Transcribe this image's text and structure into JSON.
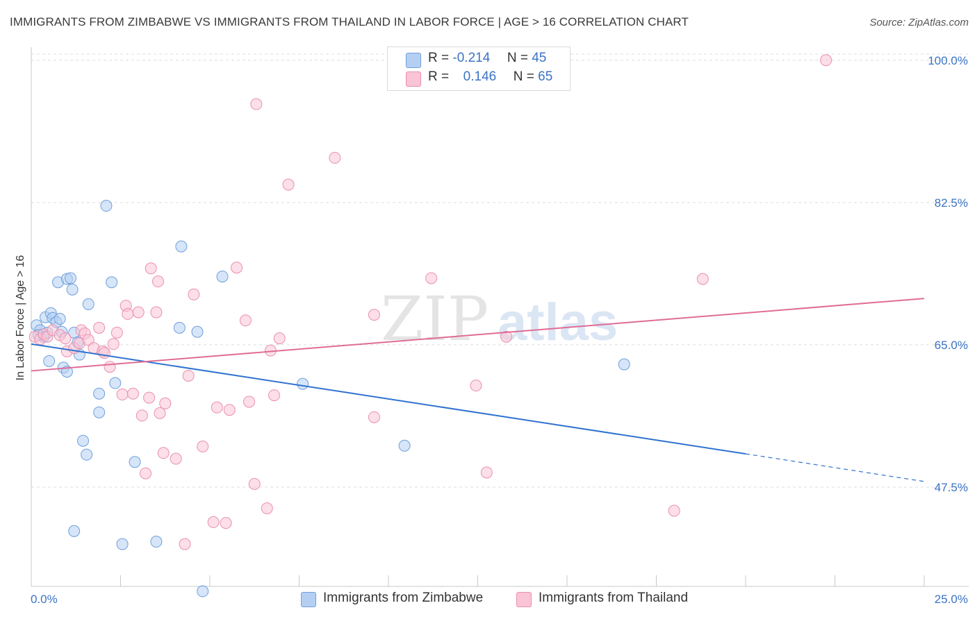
{
  "header": {
    "title": "IMMIGRANTS FROM ZIMBABWE VS IMMIGRANTS FROM THAILAND IN LABOR FORCE | AGE > 16 CORRELATION CHART",
    "source": "Source: ZipAtlas.com"
  },
  "watermark": {
    "zip": "ZIP",
    "atlas": "atlas"
  },
  "legend": {
    "r_label": "R =",
    "n_label": "N =",
    "series": [
      {
        "name": "Immigrants from Zimbabwe",
        "r": "-0.214",
        "n": "45"
      },
      {
        "name": "Immigrants from Thailand",
        "r": "0.146",
        "n": "65"
      }
    ]
  },
  "colors": {
    "zimbabwe_fill": "#b5cff2",
    "zimbabwe_stroke": "#6f9fdc",
    "zimbabwe_line": "#2f72d0",
    "thailand_fill": "#f9c4d5",
    "thailand_stroke": "#ea8fad",
    "thailand_line": "#e06c96",
    "tick_text": "#3b73c4",
    "grid": "#dcdcdc"
  },
  "chart_data": {
    "type": "scatter",
    "title": "IMMIGRANTS FROM ZIMBABWE VS IMMIGRANTS FROM THAILAND IN LABOR FORCE | AGE > 16 CORRELATION CHART",
    "xlabel": "",
    "ylabel": "In Labor Force | Age > 16",
    "xlim": [
      0,
      25
    ],
    "ylim": [
      35.3,
      101.6
    ],
    "x_tick_labels": [
      "0.0%",
      "25.0%"
    ],
    "y_ticks": [
      {
        "value": 47.5,
        "label": "47.5%"
      },
      {
        "value": 65.0,
        "label": "65.0%"
      },
      {
        "value": 82.5,
        "label": "82.5%"
      },
      {
        "value": 100.0,
        "label": "100.0%"
      }
    ],
    "grid": true,
    "series": [
      {
        "name": "Immigrants from Zimbabwe",
        "color": "#b5cff2",
        "trend": {
          "x": [
            0,
            20
          ],
          "y": [
            65.1,
            51.6
          ],
          "dashed_x": [
            20,
            25
          ],
          "dashed_y": [
            51.6,
            48.2
          ]
        },
        "points": [
          {
            "x": 0.15,
            "y": 67.4
          },
          {
            "x": 0.25,
            "y": 66.8
          },
          {
            "x": 0.35,
            "y": 66.0
          },
          {
            "x": 0.2,
            "y": 66.2
          },
          {
            "x": 0.45,
            "y": 66.5
          },
          {
            "x": 0.4,
            "y": 68.4
          },
          {
            "x": 0.55,
            "y": 68.9
          },
          {
            "x": 0.6,
            "y": 68.3
          },
          {
            "x": 0.7,
            "y": 67.8
          },
          {
            "x": 0.8,
            "y": 68.2
          },
          {
            "x": 0.85,
            "y": 66.6
          },
          {
            "x": 0.5,
            "y": 63.0
          },
          {
            "x": 0.9,
            "y": 62.2
          },
          {
            "x": 1.0,
            "y": 61.7
          },
          {
            "x": 0.75,
            "y": 72.7
          },
          {
            "x": 1.0,
            "y": 73.1
          },
          {
            "x": 1.1,
            "y": 73.2
          },
          {
            "x": 1.15,
            "y": 71.8
          },
          {
            "x": 1.2,
            "y": 66.5
          },
          {
            "x": 1.35,
            "y": 63.8
          },
          {
            "x": 1.3,
            "y": 65.3
          },
          {
            "x": 1.6,
            "y": 70.0
          },
          {
            "x": 2.1,
            "y": 82.1
          },
          {
            "x": 2.25,
            "y": 72.7
          },
          {
            "x": 2.35,
            "y": 60.3
          },
          {
            "x": 1.9,
            "y": 59.0
          },
          {
            "x": 1.9,
            "y": 56.7
          },
          {
            "x": 1.45,
            "y": 53.2
          },
          {
            "x": 1.55,
            "y": 51.5
          },
          {
            "x": 2.9,
            "y": 50.6
          },
          {
            "x": 4.2,
            "y": 77.1
          },
          {
            "x": 4.15,
            "y": 67.1
          },
          {
            "x": 4.65,
            "y": 66.6
          },
          {
            "x": 5.35,
            "y": 73.4
          },
          {
            "x": 7.6,
            "y": 60.2
          },
          {
            "x": 10.45,
            "y": 52.6
          },
          {
            "x": 16.6,
            "y": 62.6
          },
          {
            "x": 1.2,
            "y": 42.1
          },
          {
            "x": 2.55,
            "y": 40.5
          },
          {
            "x": 3.5,
            "y": 40.8
          },
          {
            "x": 4.8,
            "y": 34.7
          }
        ]
      },
      {
        "name": "Immigrants from Thailand",
        "color": "#f9c4d5",
        "trend": {
          "x": [
            0,
            25
          ],
          "y": [
            61.8,
            70.7
          ]
        },
        "points": [
          {
            "x": 0.1,
            "y": 66.0
          },
          {
            "x": 0.25,
            "y": 65.7
          },
          {
            "x": 0.35,
            "y": 66.3
          },
          {
            "x": 0.45,
            "y": 66.0
          },
          {
            "x": 0.6,
            "y": 66.8
          },
          {
            "x": 0.8,
            "y": 66.2
          },
          {
            "x": 0.95,
            "y": 65.8
          },
          {
            "x": 1.0,
            "y": 64.2
          },
          {
            "x": 1.2,
            "y": 64.6
          },
          {
            "x": 1.35,
            "y": 65.2
          },
          {
            "x": 1.4,
            "y": 66.8
          },
          {
            "x": 1.5,
            "y": 66.4
          },
          {
            "x": 1.6,
            "y": 65.6
          },
          {
            "x": 1.75,
            "y": 64.6
          },
          {
            "x": 1.9,
            "y": 67.1
          },
          {
            "x": 2.0,
            "y": 64.2
          },
          {
            "x": 2.05,
            "y": 64.0
          },
          {
            "x": 2.2,
            "y": 62.3
          },
          {
            "x": 2.3,
            "y": 65.1
          },
          {
            "x": 2.4,
            "y": 66.5
          },
          {
            "x": 2.55,
            "y": 58.9
          },
          {
            "x": 2.65,
            "y": 69.8
          },
          {
            "x": 2.7,
            "y": 68.8
          },
          {
            "x": 2.85,
            "y": 59.0
          },
          {
            "x": 3.0,
            "y": 69.0
          },
          {
            "x": 3.1,
            "y": 56.3
          },
          {
            "x": 3.2,
            "y": 49.2
          },
          {
            "x": 3.3,
            "y": 58.5
          },
          {
            "x": 3.35,
            "y": 74.4
          },
          {
            "x": 3.5,
            "y": 69.0
          },
          {
            "x": 3.6,
            "y": 56.6
          },
          {
            "x": 3.7,
            "y": 51.7
          },
          {
            "x": 3.75,
            "y": 57.8
          },
          {
            "x": 3.55,
            "y": 72.8
          },
          {
            "x": 4.05,
            "y": 51.0
          },
          {
            "x": 4.3,
            "y": 40.5
          },
          {
            "x": 4.4,
            "y": 61.2
          },
          {
            "x": 4.55,
            "y": 71.2
          },
          {
            "x": 4.8,
            "y": 52.5
          },
          {
            "x": 5.1,
            "y": 43.2
          },
          {
            "x": 5.2,
            "y": 57.3
          },
          {
            "x": 5.45,
            "y": 43.1
          },
          {
            "x": 5.55,
            "y": 57.0
          },
          {
            "x": 5.75,
            "y": 74.5
          },
          {
            "x": 6.0,
            "y": 68.0
          },
          {
            "x": 6.1,
            "y": 58.0
          },
          {
            "x": 6.25,
            "y": 47.9
          },
          {
            "x": 6.3,
            "y": 94.6
          },
          {
            "x": 6.6,
            "y": 44.9
          },
          {
            "x": 6.7,
            "y": 64.3
          },
          {
            "x": 6.8,
            "y": 58.8
          },
          {
            "x": 6.95,
            "y": 65.8
          },
          {
            "x": 7.2,
            "y": 84.7
          },
          {
            "x": 8.5,
            "y": 88.0
          },
          {
            "x": 9.6,
            "y": 56.1
          },
          {
            "x": 9.6,
            "y": 68.7
          },
          {
            "x": 11.2,
            "y": 73.2
          },
          {
            "x": 12.45,
            "y": 60.0
          },
          {
            "x": 12.75,
            "y": 49.3
          },
          {
            "x": 13.3,
            "y": 66.0
          },
          {
            "x": 18.0,
            "y": 44.6
          },
          {
            "x": 18.8,
            "y": 73.1
          },
          {
            "x": 22.25,
            "y": 100.0
          }
        ]
      }
    ]
  }
}
